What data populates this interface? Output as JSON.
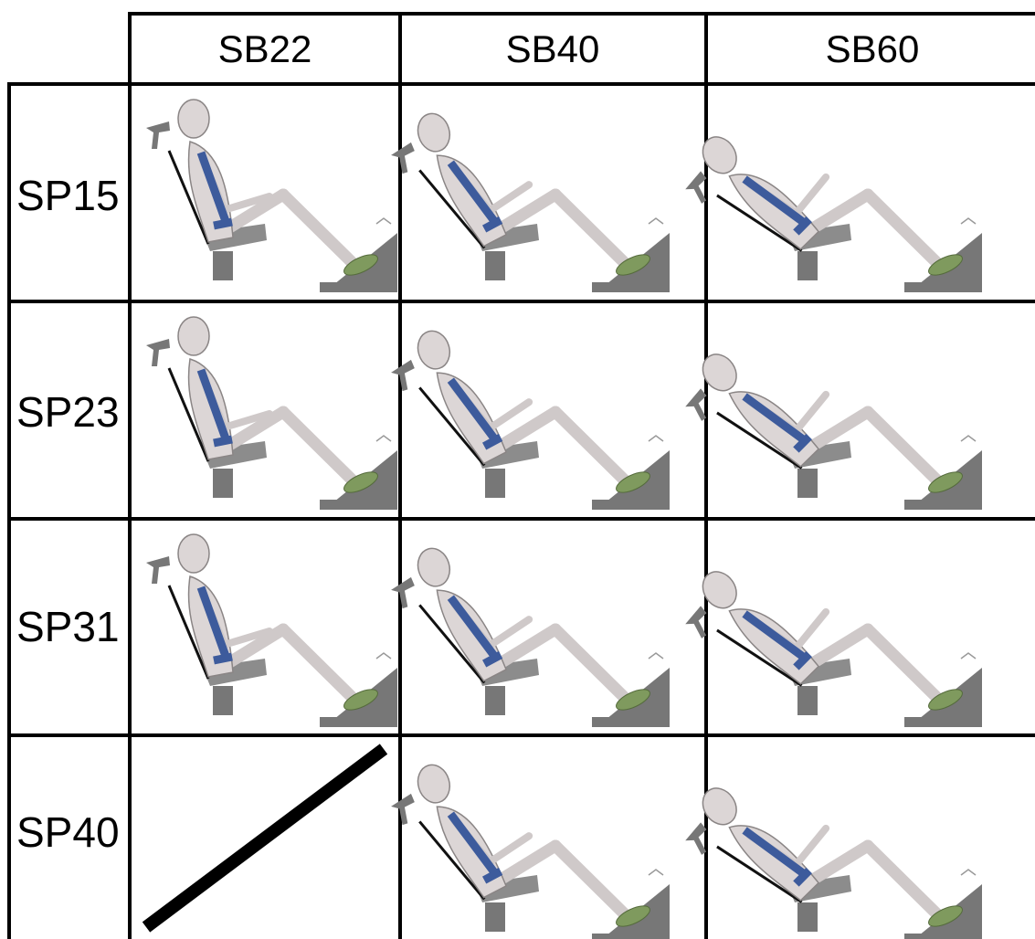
{
  "table": {
    "columns": [
      "SB22",
      "SB40",
      "SB60"
    ],
    "rows": [
      "SP15",
      "SP23",
      "SP31",
      "SP40"
    ]
  }
}
